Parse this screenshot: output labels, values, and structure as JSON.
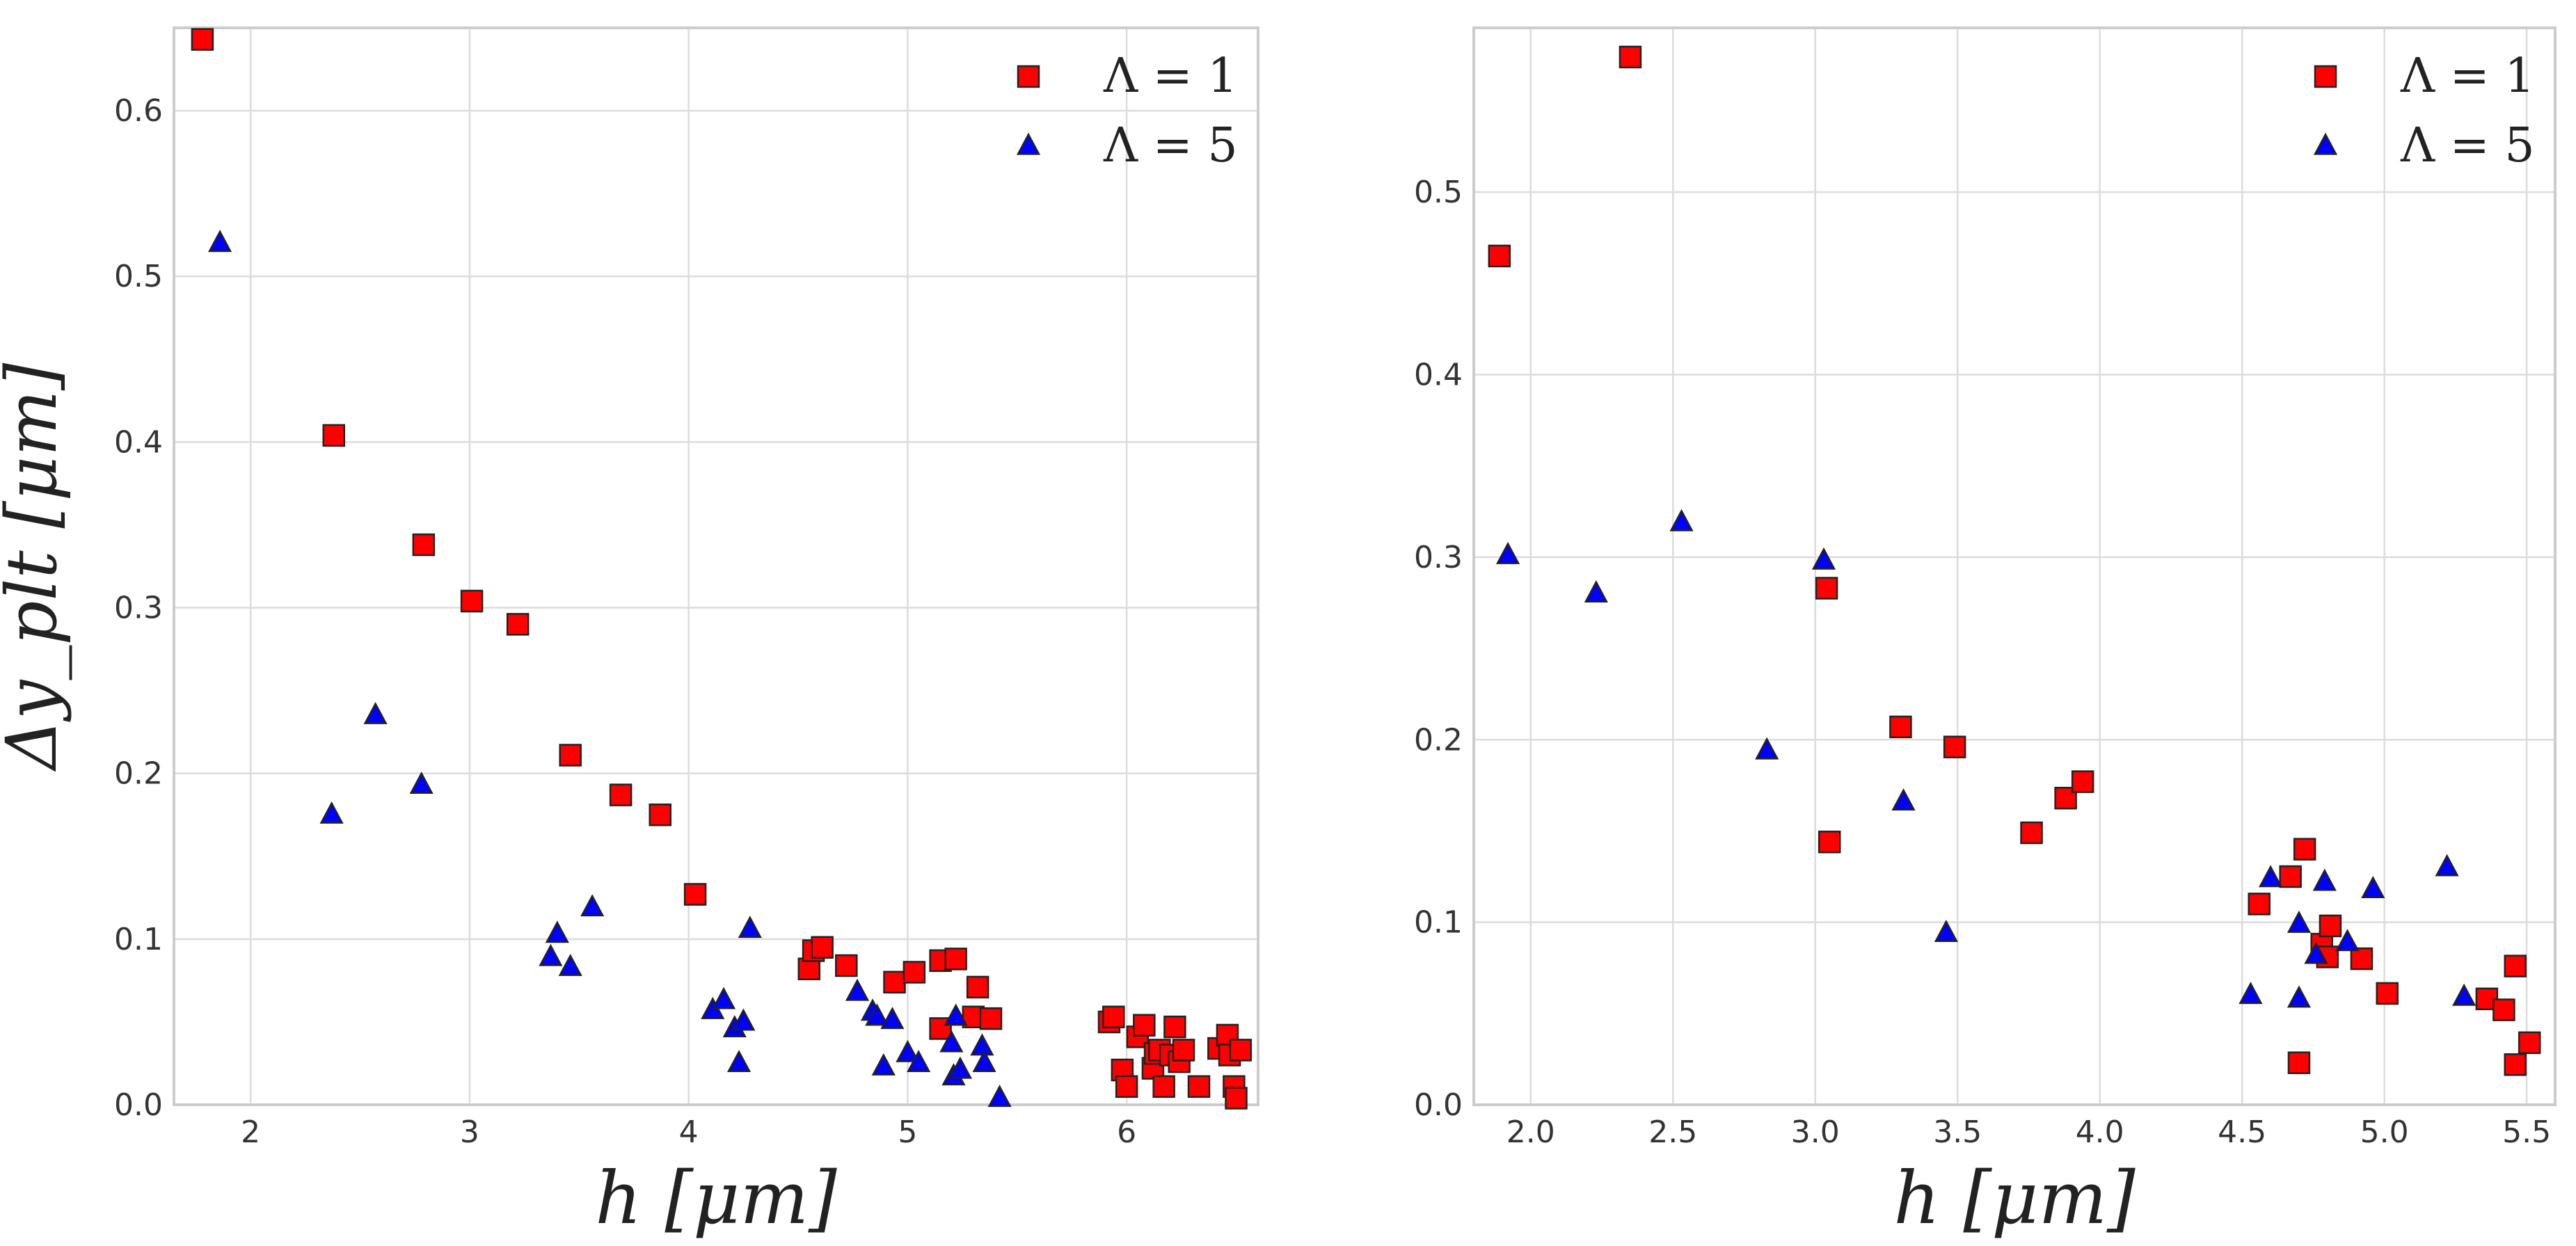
{
  "chart_data": [
    {
      "type": "scatter",
      "title": "",
      "xlabel": "h [μm]",
      "ylabel": "Δy_plt [μm]",
      "xlim": [
        1.65,
        6.6
      ],
      "ylim": [
        0.0,
        0.65
      ],
      "xticks": [
        2,
        3,
        4,
        5,
        6
      ],
      "xtick_labels": [
        "2",
        "3",
        "4",
        "5",
        "6"
      ],
      "yticks": [
        0.0,
        0.1,
        0.2,
        0.3,
        0.4,
        0.5,
        0.6
      ],
      "ytick_labels": [
        "0.0",
        "0.1",
        "0.2",
        "0.3",
        "0.4",
        "0.5",
        "0.6"
      ],
      "grid": true,
      "legend_position": "top-right",
      "series": [
        {
          "name": "Λ = 1",
          "marker": "square",
          "color": "#ff0000",
          "points": [
            [
              1.78,
              0.643
            ],
            [
              2.38,
              0.404
            ],
            [
              2.79,
              0.338
            ],
            [
              3.01,
              0.304
            ],
            [
              3.22,
              0.29
            ],
            [
              3.46,
              0.211
            ],
            [
              3.69,
              0.187
            ],
            [
              3.87,
              0.175
            ],
            [
              4.03,
              0.127
            ],
            [
              4.55,
              0.082
            ],
            [
              4.57,
              0.093
            ],
            [
              4.61,
              0.095
            ],
            [
              4.72,
              0.084
            ],
            [
              4.94,
              0.074
            ],
            [
              5.03,
              0.08
            ],
            [
              5.15,
              0.087
            ],
            [
              5.22,
              0.088
            ],
            [
              5.15,
              0.046
            ],
            [
              5.3,
              0.053
            ],
            [
              5.32,
              0.071
            ],
            [
              5.38,
              0.052
            ],
            [
              5.92,
              0.05
            ],
            [
              5.94,
              0.053
            ],
            [
              5.98,
              0.021
            ],
            [
              6.0,
              0.011
            ],
            [
              6.05,
              0.041
            ],
            [
              6.08,
              0.048
            ],
            [
              6.12,
              0.022
            ],
            [
              6.13,
              0.031
            ],
            [
              6.15,
              0.033
            ],
            [
              6.17,
              0.011
            ],
            [
              6.2,
              0.03
            ],
            [
              6.22,
              0.047
            ],
            [
              6.24,
              0.026
            ],
            [
              6.26,
              0.033
            ],
            [
              6.33,
              0.011
            ],
            [
              6.42,
              0.034
            ],
            [
              6.46,
              0.042
            ],
            [
              6.47,
              0.03
            ],
            [
              6.49,
              0.011
            ],
            [
              6.5,
              0.004
            ],
            [
              6.52,
              0.033
            ]
          ]
        },
        {
          "name": "Λ = 5",
          "marker": "triangle",
          "color": "#0000ff",
          "points": [
            [
              1.86,
              0.52
            ],
            [
              2.37,
              0.175
            ],
            [
              2.57,
              0.235
            ],
            [
              2.78,
              0.193
            ],
            [
              3.37,
              0.089
            ],
            [
              3.4,
              0.103
            ],
            [
              3.46,
              0.083
            ],
            [
              3.56,
              0.119
            ],
            [
              4.11,
              0.057
            ],
            [
              4.16,
              0.063
            ],
            [
              4.21,
              0.046
            ],
            [
              4.23,
              0.025
            ],
            [
              4.25,
              0.05
            ],
            [
              4.28,
              0.106
            ],
            [
              4.77,
              0.068
            ],
            [
              4.84,
              0.056
            ],
            [
              4.86,
              0.053
            ],
            [
              4.89,
              0.023
            ],
            [
              4.93,
              0.051
            ],
            [
              5.0,
              0.031
            ],
            [
              5.05,
              0.025
            ],
            [
              5.2,
              0.037
            ],
            [
              5.21,
              0.017
            ],
            [
              5.22,
              0.053
            ],
            [
              5.24,
              0.021
            ],
            [
              5.34,
              0.035
            ],
            [
              5.35,
              0.025
            ],
            [
              5.42,
              0.004
            ]
          ]
        }
      ]
    },
    {
      "type": "scatter",
      "title": "",
      "xlabel": "h [μm]",
      "ylabel": "",
      "xlim": [
        1.8,
        5.6
      ],
      "ylim": [
        0.0,
        0.59
      ],
      "xticks": [
        2.0,
        2.5,
        3.0,
        3.5,
        4.0,
        4.5,
        5.0,
        5.5
      ],
      "xtick_labels": [
        "2.0",
        "2.5",
        "3.0",
        "3.5",
        "4.0",
        "4.5",
        "5.0",
        "5.5"
      ],
      "yticks": [
        0.0,
        0.1,
        0.2,
        0.3,
        0.4,
        0.5
      ],
      "ytick_labels": [
        "0.0",
        "0.1",
        "0.2",
        "0.3",
        "0.4",
        "0.5"
      ],
      "grid": true,
      "legend_position": "top-right",
      "series": [
        {
          "name": "Λ = 1",
          "marker": "square",
          "color": "#ff0000",
          "points": [
            [
              1.89,
              0.465
            ],
            [
              2.35,
              0.574
            ],
            [
              3.04,
              0.283
            ],
            [
              3.05,
              0.144
            ],
            [
              3.3,
              0.207
            ],
            [
              3.49,
              0.196
            ],
            [
              3.76,
              0.149
            ],
            [
              3.88,
              0.168
            ],
            [
              3.94,
              0.177
            ],
            [
              4.56,
              0.11
            ],
            [
              4.67,
              0.125
            ],
            [
              4.7,
              0.023
            ],
            [
              4.72,
              0.14
            ],
            [
              4.78,
              0.088
            ],
            [
              4.8,
              0.081
            ],
            [
              4.81,
              0.098
            ],
            [
              4.92,
              0.08
            ],
            [
              5.01,
              0.061
            ],
            [
              5.36,
              0.058
            ],
            [
              5.42,
              0.052
            ],
            [
              5.46,
              0.076
            ],
            [
              5.46,
              0.022
            ],
            [
              5.51,
              0.034
            ]
          ]
        },
        {
          "name": "Λ = 5",
          "marker": "triangle",
          "color": "#0000ff",
          "points": [
            [
              1.92,
              0.301
            ],
            [
              2.23,
              0.28
            ],
            [
              2.53,
              0.319
            ],
            [
              2.83,
              0.194
            ],
            [
              3.03,
              0.298
            ],
            [
              3.31,
              0.166
            ],
            [
              3.46,
              0.094
            ],
            [
              4.53,
              0.06
            ],
            [
              4.6,
              0.124
            ],
            [
              4.7,
              0.099
            ],
            [
              4.7,
              0.058
            ],
            [
              4.76,
              0.082
            ],
            [
              4.79,
              0.122
            ],
            [
              4.87,
              0.089
            ],
            [
              4.96,
              0.118
            ],
            [
              5.22,
              0.13
            ],
            [
              5.28,
              0.059
            ]
          ]
        }
      ]
    }
  ]
}
